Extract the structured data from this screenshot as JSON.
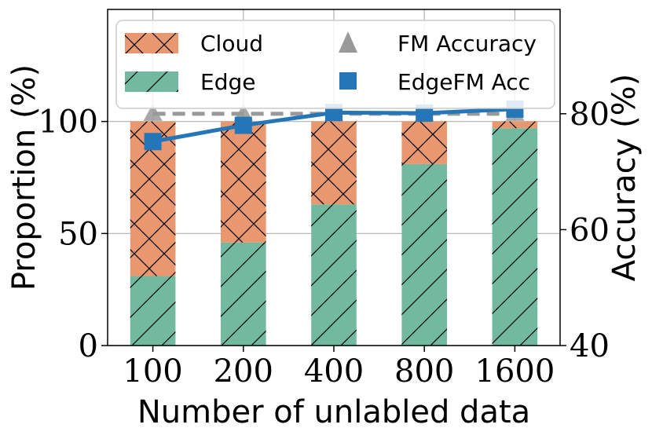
{
  "chart_data": {
    "type": "bar",
    "stacked": true,
    "categories": [
      "100",
      "200",
      "400",
      "800",
      "1600"
    ],
    "xlabel": "Number of unlabled data",
    "ylabel": "Proportion (%)",
    "ylabel_right": "Accuracy (%)",
    "ylim": [
      0,
      150
    ],
    "ylim_right": [
      40,
      98
    ],
    "yticks": [
      0,
      50,
      100
    ],
    "yticks_right": [
      40,
      60,
      80
    ],
    "grid": true,
    "legend_position": "top",
    "series": [
      {
        "name": "Edge",
        "axis": "left",
        "values": [
          31,
          46,
          63,
          81,
          97
        ],
        "color": "#72b9a0",
        "hatch": "diagonal"
      },
      {
        "name": "Cloud",
        "axis": "left",
        "values": [
          69,
          54,
          37,
          19,
          3
        ],
        "color": "#e8976f",
        "hatch": "cross"
      },
      {
        "name": "FM Accuracy",
        "axis": "right",
        "type": "line",
        "style": "dashed",
        "marker": "triangle",
        "values": [
          80,
          80,
          80,
          80,
          80
        ],
        "color": "#999999"
      },
      {
        "name": "EdgeFM Acc",
        "axis": "right",
        "type": "line",
        "marker": "square",
        "values": [
          75.2,
          78,
          80.2,
          80.1,
          80.8
        ],
        "color": "#2576b8"
      }
    ]
  }
}
